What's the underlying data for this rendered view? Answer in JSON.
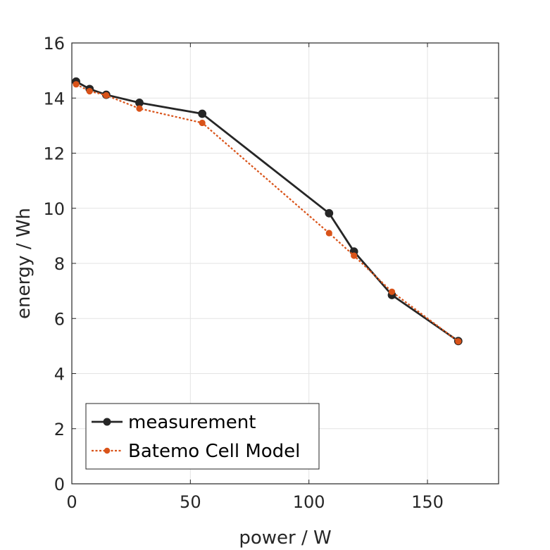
{
  "chart_data": {
    "type": "line",
    "title": "",
    "xlabel": "power / W",
    "ylabel": "energy / Wh",
    "xlim": [
      0,
      180
    ],
    "ylim": [
      0,
      16
    ],
    "xticks": [
      0,
      50,
      100,
      150
    ],
    "yticks": [
      0,
      2,
      4,
      6,
      8,
      10,
      12,
      14,
      16
    ],
    "grid": true,
    "legend_position": "bottom-left",
    "series": [
      {
        "name": "measurement",
        "color": "#262626",
        "line_style": "solid",
        "marker": "circle",
        "x": [
          1.8,
          7.5,
          14.5,
          28.5,
          55,
          108.5,
          119,
          135,
          163
        ],
        "y": [
          14.6,
          14.33,
          14.12,
          13.83,
          13.43,
          9.82,
          8.43,
          6.85,
          5.18
        ]
      },
      {
        "name": "Batemo Cell Model",
        "color": "#d95319",
        "line_style": "dotted",
        "marker": "circle",
        "x": [
          1.8,
          7.5,
          14.5,
          28.5,
          55,
          108.5,
          119,
          135,
          163
        ],
        "y": [
          14.5,
          14.25,
          14.1,
          13.62,
          13.1,
          9.1,
          8.28,
          6.97,
          5.17
        ]
      }
    ]
  }
}
